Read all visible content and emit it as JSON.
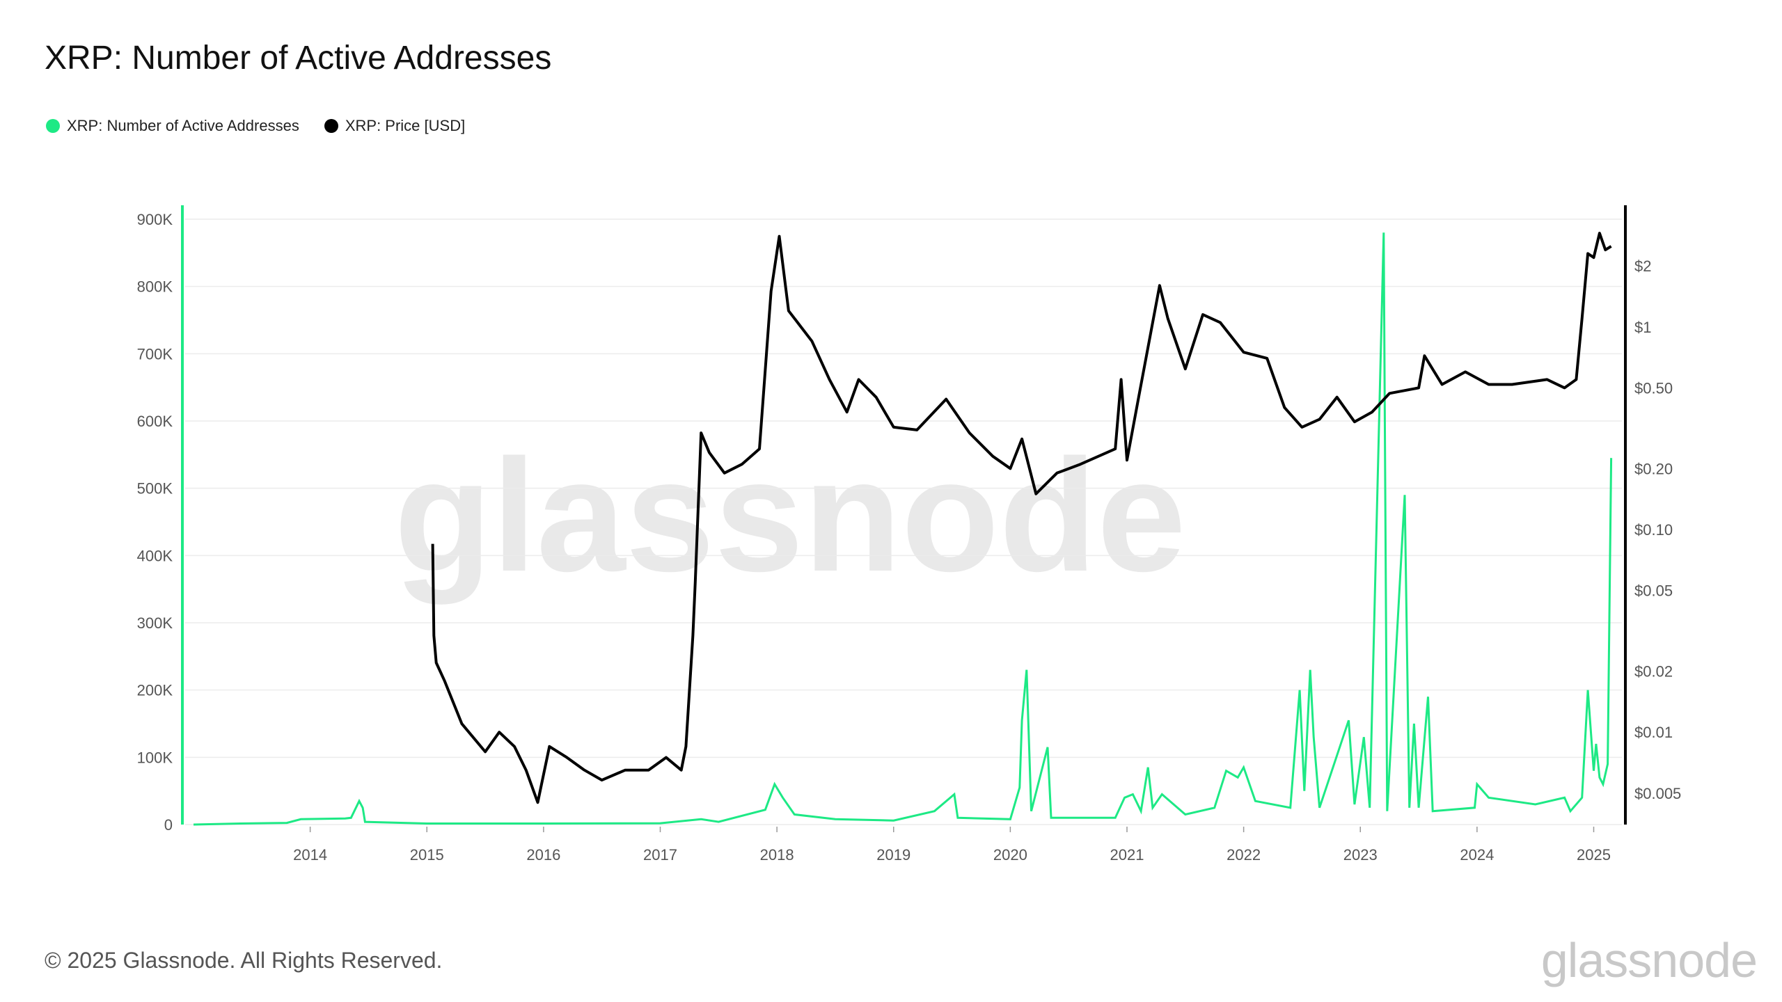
{
  "header": {
    "title": "XRP: Number of Active Addresses"
  },
  "legend": [
    {
      "label": "XRP: Number of Active Addresses",
      "color": "#1de985"
    },
    {
      "label": "XRP: Price [USD]",
      "color": "#000000"
    }
  ],
  "watermark": "glassnode",
  "footer": {
    "copyright": "© 2025 Glassnode. All Rights Reserved.",
    "logo": "glassnode"
  },
  "chart_data": {
    "type": "line",
    "title": "XRP: Number of Active Addresses",
    "x_tick_labels": [
      "2014",
      "2015",
      "2016",
      "2017",
      "2018",
      "2019",
      "2020",
      "2021",
      "2022",
      "2023",
      "2024",
      "2025"
    ],
    "y_left_tick_labels": [
      "0",
      "100K",
      "200K",
      "300K",
      "400K",
      "500K",
      "600K",
      "700K",
      "800K",
      "900K"
    ],
    "y_right_tick_labels": [
      "$0.005",
      "$0.01",
      "$0.02",
      "$0.05",
      "$0.10",
      "$0.20",
      "$0.50",
      "$1",
      "$2"
    ],
    "y_left_range": [
      0,
      900000
    ],
    "y_right_range_log": [
      0.0035,
      3.4
    ],
    "x_range": [
      2013.0,
      2025.17
    ],
    "series": [
      {
        "name": "XRP: Number of Active Addresses",
        "axis": "left",
        "color": "#1de985",
        "points": [
          [
            2013.0,
            0
          ],
          [
            2013.4,
            1500
          ],
          [
            2013.8,
            2500
          ],
          [
            2013.92,
            8000
          ],
          [
            2014.3,
            9000
          ],
          [
            2014.35,
            10000
          ],
          [
            2014.42,
            35000
          ],
          [
            2014.45,
            25000
          ],
          [
            2014.47,
            4000
          ],
          [
            2015.0,
            1500
          ],
          [
            2016.0,
            1500
          ],
          [
            2017.0,
            2000
          ],
          [
            2017.35,
            8000
          ],
          [
            2017.5,
            4000
          ],
          [
            2017.9,
            22000
          ],
          [
            2017.98,
            60000
          ],
          [
            2018.05,
            40000
          ],
          [
            2018.15,
            15000
          ],
          [
            2018.5,
            8000
          ],
          [
            2019.0,
            6000
          ],
          [
            2019.35,
            20000
          ],
          [
            2019.52,
            45000
          ],
          [
            2019.55,
            10000
          ],
          [
            2020.0,
            8000
          ],
          [
            2020.08,
            55000
          ],
          [
            2020.1,
            155000
          ],
          [
            2020.14,
            230000
          ],
          [
            2020.18,
            20000
          ],
          [
            2020.32,
            115000
          ],
          [
            2020.35,
            10000
          ],
          [
            2020.9,
            10000
          ],
          [
            2020.98,
            40000
          ],
          [
            2021.05,
            45000
          ],
          [
            2021.12,
            20000
          ],
          [
            2021.18,
            85000
          ],
          [
            2021.22,
            25000
          ],
          [
            2021.3,
            45000
          ],
          [
            2021.5,
            15000
          ],
          [
            2021.75,
            25000
          ],
          [
            2021.85,
            80000
          ],
          [
            2021.95,
            70000
          ],
          [
            2022.0,
            85000
          ],
          [
            2022.1,
            35000
          ],
          [
            2022.4,
            25000
          ],
          [
            2022.48,
            200000
          ],
          [
            2022.52,
            50000
          ],
          [
            2022.57,
            230000
          ],
          [
            2022.6,
            130000
          ],
          [
            2022.65,
            25000
          ],
          [
            2022.9,
            155000
          ],
          [
            2022.95,
            30000
          ],
          [
            2023.03,
            130000
          ],
          [
            2023.08,
            25000
          ],
          [
            2023.2,
            880000
          ],
          [
            2023.23,
            20000
          ],
          [
            2023.38,
            490000
          ],
          [
            2023.42,
            25000
          ],
          [
            2023.46,
            150000
          ],
          [
            2023.5,
            25000
          ],
          [
            2023.58,
            190000
          ],
          [
            2023.62,
            20000
          ],
          [
            2023.98,
            25000
          ],
          [
            2024.0,
            60000
          ],
          [
            2024.1,
            40000
          ],
          [
            2024.5,
            30000
          ],
          [
            2024.75,
            40000
          ],
          [
            2024.8,
            20000
          ],
          [
            2024.9,
            40000
          ],
          [
            2024.95,
            200000
          ],
          [
            2025.0,
            80000
          ],
          [
            2025.02,
            120000
          ],
          [
            2025.05,
            70000
          ],
          [
            2025.08,
            60000
          ],
          [
            2025.12,
            90000
          ],
          [
            2025.15,
            545000
          ]
        ]
      },
      {
        "name": "XRP: Price [USD]",
        "axis": "right",
        "color": "#000000",
        "points": [
          [
            2015.05,
            0.085
          ],
          [
            2015.06,
            0.03
          ],
          [
            2015.08,
            0.022
          ],
          [
            2015.15,
            0.018
          ],
          [
            2015.3,
            0.011
          ],
          [
            2015.5,
            0.008
          ],
          [
            2015.62,
            0.01
          ],
          [
            2015.75,
            0.0085
          ],
          [
            2015.85,
            0.0065
          ],
          [
            2015.95,
            0.0045
          ],
          [
            2016.05,
            0.0085
          ],
          [
            2016.2,
            0.0075
          ],
          [
            2016.35,
            0.0065
          ],
          [
            2016.5,
            0.0058
          ],
          [
            2016.7,
            0.0065
          ],
          [
            2016.9,
            0.0065
          ],
          [
            2017.05,
            0.0075
          ],
          [
            2017.18,
            0.0065
          ],
          [
            2017.22,
            0.0085
          ],
          [
            2017.28,
            0.03
          ],
          [
            2017.3,
            0.055
          ],
          [
            2017.35,
            0.3
          ],
          [
            2017.42,
            0.24
          ],
          [
            2017.55,
            0.19
          ],
          [
            2017.7,
            0.21
          ],
          [
            2017.85,
            0.25
          ],
          [
            2017.95,
            1.5
          ],
          [
            2018.02,
            2.8
          ],
          [
            2018.1,
            1.2
          ],
          [
            2018.3,
            0.85
          ],
          [
            2018.45,
            0.55
          ],
          [
            2018.6,
            0.38
          ],
          [
            2018.7,
            0.55
          ],
          [
            2018.85,
            0.45
          ],
          [
            2019.0,
            0.32
          ],
          [
            2019.2,
            0.31
          ],
          [
            2019.45,
            0.44
          ],
          [
            2019.65,
            0.3
          ],
          [
            2019.85,
            0.23
          ],
          [
            2020.0,
            0.2
          ],
          [
            2020.1,
            0.28
          ],
          [
            2020.22,
            0.15
          ],
          [
            2020.4,
            0.19
          ],
          [
            2020.6,
            0.21
          ],
          [
            2020.9,
            0.25
          ],
          [
            2020.95,
            0.55
          ],
          [
            2021.0,
            0.22
          ],
          [
            2021.1,
            0.45
          ],
          [
            2021.28,
            1.6
          ],
          [
            2021.35,
            1.1
          ],
          [
            2021.5,
            0.62
          ],
          [
            2021.65,
            1.15
          ],
          [
            2021.8,
            1.05
          ],
          [
            2022.0,
            0.75
          ],
          [
            2022.2,
            0.7
          ],
          [
            2022.35,
            0.4
          ],
          [
            2022.5,
            0.32
          ],
          [
            2022.65,
            0.35
          ],
          [
            2022.8,
            0.45
          ],
          [
            2022.95,
            0.34
          ],
          [
            2023.1,
            0.38
          ],
          [
            2023.25,
            0.47
          ],
          [
            2023.5,
            0.5
          ],
          [
            2023.55,
            0.72
          ],
          [
            2023.7,
            0.52
          ],
          [
            2023.9,
            0.6
          ],
          [
            2024.1,
            0.52
          ],
          [
            2024.3,
            0.52
          ],
          [
            2024.6,
            0.55
          ],
          [
            2024.75,
            0.5
          ],
          [
            2024.85,
            0.55
          ],
          [
            2024.9,
            1.1
          ],
          [
            2024.95,
            2.3
          ],
          [
            2025.0,
            2.2
          ],
          [
            2025.05,
            2.9
          ],
          [
            2025.1,
            2.4
          ],
          [
            2025.15,
            2.5
          ]
        ]
      }
    ],
    "grid": true
  }
}
